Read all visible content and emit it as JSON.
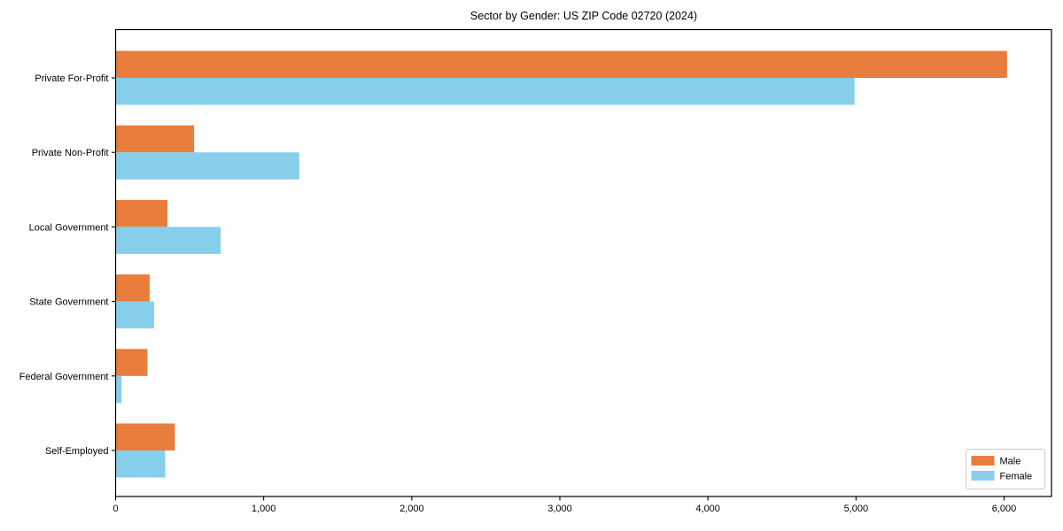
{
  "figure": {
    "background": "#ffffff",
    "axis_color": "#000000"
  },
  "chart_data": {
    "type": "bar",
    "orientation": "horizontal",
    "title": "Sector by Gender: US ZIP Code 02720 (2024)",
    "categories": [
      "Private For-Profit",
      "Private Non-Profit",
      "Local Government",
      "State Government",
      "Federal Government",
      "Self-Employed"
    ],
    "series": [
      {
        "name": "Male",
        "color": "#E87D3C",
        "values": [
          6020,
          530,
          350,
          230,
          215,
          400
        ]
      },
      {
        "name": "Female",
        "color": "#87CEEB",
        "values": [
          4990,
          1240,
          710,
          260,
          40,
          335
        ]
      }
    ],
    "xlabel": "",
    "ylabel": "",
    "xticks": [
      0,
      1000,
      2000,
      3000,
      4000,
      5000,
      6000
    ],
    "xtick_labels": [
      "0",
      "1,000",
      "2,000",
      "3,000",
      "4,000",
      "5,000",
      "6,000"
    ],
    "xlim": [
      0,
      6320
    ],
    "grid": false,
    "legend": {
      "position": "lower right",
      "labels": [
        "Male",
        "Female"
      ]
    }
  }
}
